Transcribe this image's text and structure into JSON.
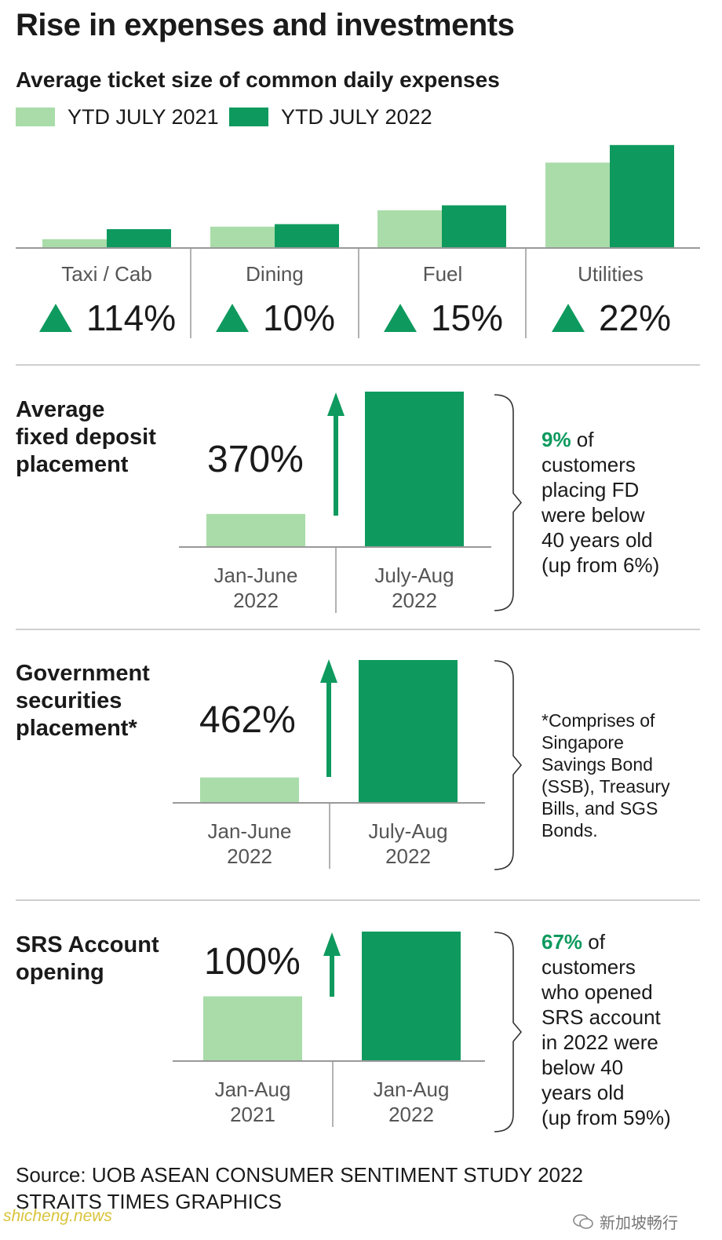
{
  "colors": {
    "light": "#a9dca9",
    "dark": "#0e9a5e",
    "accent": "#0e9a5e",
    "axis": "#999999"
  },
  "title": "Rise in expenses and investments",
  "subtitle": "Average ticket size of common daily expenses",
  "chart_data": [
    {
      "type": "bar",
      "title": "Average ticket size of common daily expenses",
      "categories": [
        "Taxi / Cab",
        "Dining",
        "Fuel",
        "Utilities"
      ],
      "series": [
        {
          "name": "YTD JULY 2021",
          "values": [
            7,
            17,
            30,
            68
          ]
        },
        {
          "name": "YTD JULY 2022",
          "values": [
            15,
            19,
            34,
            82
          ]
        }
      ],
      "changes": [
        "114%",
        "10%",
        "15%",
        "22%"
      ],
      "ylim": [
        0,
        100
      ]
    },
    {
      "type": "bar",
      "title": "Average fixed deposit placement",
      "categories": [
        "Jan-June 2022",
        "July-Aug 2022"
      ],
      "values": [
        100,
        470
      ],
      "change": "370%"
    },
    {
      "type": "bar",
      "title": "Government securities placement*",
      "categories": [
        "Jan-June 2022",
        "July-Aug 2022"
      ],
      "values": [
        100,
        562
      ],
      "change": "462%"
    },
    {
      "type": "bar",
      "title": "SRS Account opening",
      "categories": [
        "Jan-Aug 2021",
        "Jan-Aug 2022"
      ],
      "values": [
        100,
        200
      ],
      "change": "100%"
    }
  ],
  "sections": [
    {
      "title_lines": [
        "Average",
        "fixed deposit",
        "placement"
      ],
      "pct": "370%",
      "periods": [
        [
          "Jan-June",
          "2022"
        ],
        [
          "July-Aug",
          "2022"
        ]
      ],
      "note_highlight": "9%",
      "note_lines": [
        " of",
        "customers",
        "placing FD",
        "were below",
        "40 years old",
        "(up from 6%)"
      ]
    },
    {
      "title_lines": [
        "Government",
        "securities",
        "placement*"
      ],
      "pct": "462%",
      "periods": [
        [
          "Jan-June",
          "2022"
        ],
        [
          "July-Aug",
          "2022"
        ]
      ],
      "note_lines": [
        "*Comprises of",
        "Singapore",
        "Savings Bond",
        "(SSB), Treasury",
        "Bills, and SGS",
        "Bonds."
      ]
    },
    {
      "title_lines": [
        "SRS Account",
        "opening"
      ],
      "pct": "100%",
      "periods": [
        [
          "Jan-Aug",
          "2021"
        ],
        [
          "Jan-Aug",
          "2022"
        ]
      ],
      "note_highlight": "67%",
      "note_lines": [
        " of",
        "customers",
        "who opened",
        "SRS account",
        "in 2022 were",
        "below 40",
        "years old",
        "(up from 59%)"
      ]
    }
  ],
  "source_lines": [
    "Source: UOB ASEAN CONSUMER SENTIMENT STUDY 2022",
    "STRAITS TIMES GRAPHICS"
  ],
  "watermark": "新加坡畅行",
  "watermark_site": "shicheng.news",
  "watermark_icon": "wechat-icon"
}
